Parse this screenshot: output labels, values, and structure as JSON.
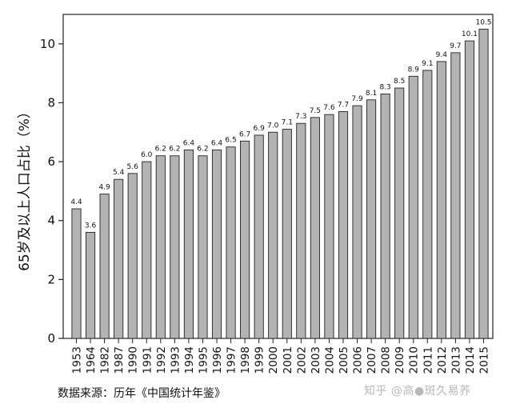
{
  "chart_data": {
    "type": "bar",
    "categories": [
      "1953",
      "1964",
      "1982",
      "1987",
      "1990",
      "1991",
      "1992",
      "1993",
      "1994",
      "1995",
      "1996",
      "1997",
      "1998",
      "1999",
      "2000",
      "2001",
      "2002",
      "2003",
      "2004",
      "2005",
      "2006",
      "2007",
      "2008",
      "2009",
      "2010",
      "2011",
      "2012",
      "2013",
      "2014",
      "2015"
    ],
    "values": [
      4.4,
      3.6,
      4.9,
      5.4,
      5.6,
      6.0,
      6.2,
      6.2,
      6.4,
      6.2,
      6.4,
      6.5,
      6.7,
      6.9,
      7.0,
      7.1,
      7.3,
      7.5,
      7.6,
      7.7,
      7.9,
      8.1,
      8.3,
      8.5,
      8.9,
      9.1,
      9.4,
      9.7,
      10.1,
      10.5
    ],
    "data_labels": [
      "4.4",
      "3.6",
      "4.9",
      "5.4",
      "5.6",
      "6.0",
      "6.2",
      "6.2",
      "6.4",
      "6.2",
      "6.4",
      "6.5",
      "6.7",
      "6.9",
      "7.0",
      "7.1",
      "7.3",
      "7.5",
      "7.6",
      "7.7",
      "7.9",
      "8.1",
      "8.3",
      "8.5",
      "8.9",
      "9.1",
      "9.4",
      "9.7",
      "10.1",
      "10.5"
    ],
    "ylabel": "65岁及以上人口占比（%）",
    "xlabel": "",
    "ylim": [
      0,
      11
    ],
    "yticks": [
      0,
      2,
      4,
      6,
      8,
      10
    ],
    "grid": false,
    "bar_color": "#b3b3b3",
    "bar_edge_color": "#222222"
  },
  "footer": {
    "source": "数据来源：历年《中国统计年鉴》",
    "watermark": "知乎 @高●斑久易荞"
  }
}
